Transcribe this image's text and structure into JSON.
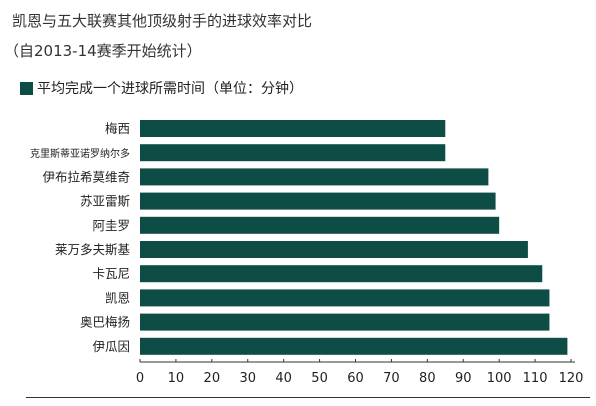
{
  "chart_data": {
    "type": "bar",
    "orientation": "horizontal",
    "title": "凯恩与五大联赛其他顶级射手的进球效率对比",
    "subtitle": "（自2013-14赛季开始统计）",
    "categories": [
      "梅西",
      "克里斯蒂亚诺罗纳尔多",
      "伊布拉希莫维奇",
      "苏亚雷斯",
      "阿圭罗",
      "莱万多夫斯基",
      "卡瓦尼",
      "凯恩",
      "奥巴梅扬",
      "伊瓜因"
    ],
    "series": [
      {
        "name": "平均完成一个进球所需时间（单位：分钟）",
        "values": [
          85,
          85,
          97,
          99,
          100,
          108,
          112,
          114,
          114,
          119
        ],
        "color": "#0d4d45"
      }
    ],
    "xlim": [
      0,
      120
    ],
    "xticks": [
      0,
      10,
      20,
      30,
      40,
      50,
      60,
      70,
      80,
      90,
      100,
      110,
      120
    ],
    "grid": false,
    "legend_position": "top-left"
  }
}
